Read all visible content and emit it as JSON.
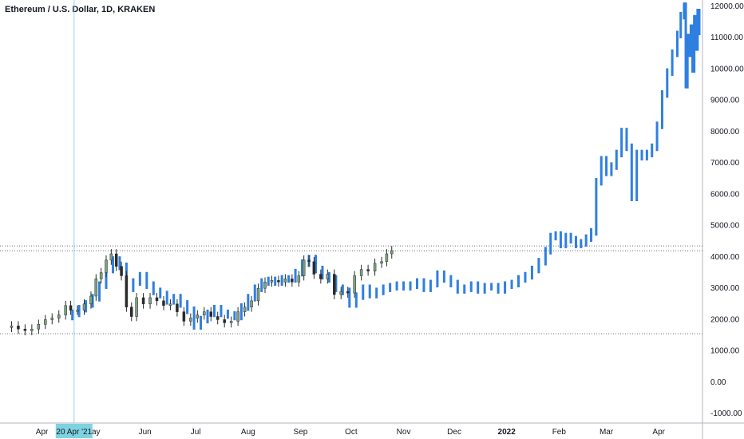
{
  "chart_data": {
    "type": "candlestick_with_projection",
    "title": "Ethereum / U.S. Dollar, 1D, KRAKEN",
    "y_ticks": [
      -1000,
      0,
      1000,
      2000,
      3000,
      4000,
      5000,
      6000,
      7000,
      8000,
      9000,
      10000,
      11000,
      12000
    ],
    "y_tick_labels": [
      "-1000.00",
      "0.00",
      "1000.00",
      "2000.00",
      "3000.00",
      "4000.00",
      "5000.00",
      "6000.00",
      "7000.00",
      "8000.00",
      "9000.00",
      "10000.00",
      "11000.00",
      "12000.00"
    ],
    "ylim": [
      -1300,
      12200
    ],
    "x_ticks": [
      {
        "label": "Apr",
        "date": "2021-04-01",
        "bold": false
      },
      {
        "label": "May",
        "date": "2021-05-01",
        "bold": false
      },
      {
        "label": "Jun",
        "date": "2021-06-01",
        "bold": false
      },
      {
        "label": "Jul",
        "date": "2021-07-01",
        "bold": false
      },
      {
        "label": "Aug",
        "date": "2021-08-01",
        "bold": false
      },
      {
        "label": "Sep",
        "date": "2021-09-01",
        "bold": false
      },
      {
        "label": "Oct",
        "date": "2021-10-01",
        "bold": false
      },
      {
        "label": "Nov",
        "date": "2021-11-01",
        "bold": false
      },
      {
        "label": "Dec",
        "date": "2021-12-01",
        "bold": false
      },
      {
        "label": "2022",
        "date": "2022-01-01",
        "bold": true
      },
      {
        "label": "Feb",
        "date": "2022-02-01",
        "bold": false
      },
      {
        "label": "Mar",
        "date": "2022-03-01",
        "bold": false
      },
      {
        "label": "Apr",
        "date": "2022-04-01",
        "bold": false
      }
    ],
    "xlim": [
      "2021-03-10",
      "2022-04-25"
    ],
    "crosshair": {
      "date": "2021-04-20",
      "label": "20 Apr '21"
    },
    "horizontal_lines": [
      {
        "value": 4350,
        "style": "dotted"
      },
      {
        "value": 4200,
        "style": "dotted"
      },
      {
        "value": 1550,
        "style": "dotted"
      }
    ],
    "price_series": {
      "name": "",
      "color_up": "#7aa581",
      "color_down": "#2a2a2a",
      "points": [
        [
          "2021-03-10",
          1750
        ],
        [
          "2021-03-14",
          1800
        ],
        [
          "2021-03-18",
          1700
        ],
        [
          "2021-03-22",
          1650
        ],
        [
          "2021-03-26",
          1700
        ],
        [
          "2021-03-30",
          1850
        ],
        [
          "2021-04-03",
          2000
        ],
        [
          "2021-04-07",
          2050
        ],
        [
          "2021-04-11",
          2150
        ],
        [
          "2021-04-15",
          2450
        ],
        [
          "2021-04-18",
          2300
        ],
        [
          "2021-04-22",
          2300
        ],
        [
          "2021-04-26",
          2500
        ],
        [
          "2021-04-30",
          2750
        ],
        [
          "2021-05-03",
          3300
        ],
        [
          "2021-05-06",
          3500
        ],
        [
          "2021-05-09",
          3900
        ],
        [
          "2021-05-12",
          4100
        ],
        [
          "2021-05-15",
          3700
        ],
        [
          "2021-05-18",
          3400
        ],
        [
          "2021-05-21",
          2400
        ],
        [
          "2021-05-24",
          2100
        ],
        [
          "2021-05-27",
          2700
        ],
        [
          "2021-05-31",
          2500
        ],
        [
          "2021-06-04",
          2700
        ],
        [
          "2021-06-08",
          2600
        ],
        [
          "2021-06-12",
          2450
        ],
        [
          "2021-06-16",
          2500
        ],
        [
          "2021-06-20",
          2250
        ],
        [
          "2021-06-24",
          1950
        ],
        [
          "2021-06-28",
          2050
        ],
        [
          "2021-07-02",
          2150
        ],
        [
          "2021-07-06",
          2250
        ],
        [
          "2021-07-10",
          2100
        ],
        [
          "2021-07-14",
          2000
        ],
        [
          "2021-07-18",
          1900
        ],
        [
          "2021-07-22",
          1950
        ],
        [
          "2021-07-26",
          2250
        ],
        [
          "2021-07-30",
          2400
        ],
        [
          "2021-08-03",
          2600
        ],
        [
          "2021-08-07",
          3000
        ],
        [
          "2021-08-11",
          3200
        ],
        [
          "2021-08-15",
          3250
        ],
        [
          "2021-08-19",
          3200
        ],
        [
          "2021-08-23",
          3300
        ],
        [
          "2021-08-27",
          3200
        ],
        [
          "2021-08-31",
          3400
        ],
        [
          "2021-09-03",
          3900
        ],
        [
          "2021-09-06",
          3850
        ],
        [
          "2021-09-09",
          3450
        ],
        [
          "2021-09-13",
          3300
        ],
        [
          "2021-09-17",
          3450
        ],
        [
          "2021-09-21",
          2800
        ],
        [
          "2021-09-25",
          2900
        ],
        [
          "2021-09-29",
          2850
        ],
        [
          "2021-10-03",
          3400
        ],
        [
          "2021-10-07",
          3600
        ],
        [
          "2021-10-11",
          3550
        ],
        [
          "2021-10-15",
          3800
        ],
        [
          "2021-10-19",
          3850
        ],
        [
          "2021-10-22",
          4100
        ],
        [
          "2021-10-25",
          4200
        ]
      ]
    },
    "projection_series": {
      "name": "",
      "color": "#2f7fe0",
      "points": [
        [
          "2021-04-15",
          2100
        ],
        [
          "2021-04-19",
          2200
        ],
        [
          "2021-04-23",
          2350
        ],
        [
          "2021-04-27",
          2500
        ],
        [
          "2021-05-01",
          2700
        ],
        [
          "2021-05-05",
          3100
        ],
        [
          "2021-05-09",
          3600
        ],
        [
          "2021-05-13",
          3900
        ],
        [
          "2021-05-17",
          3700
        ],
        [
          "2021-05-21",
          3000
        ],
        [
          "2021-05-25",
          3200
        ],
        [
          "2021-05-29",
          3400
        ],
        [
          "2021-06-02",
          3100
        ],
        [
          "2021-06-06",
          2900
        ],
        [
          "2021-06-10",
          2800
        ],
        [
          "2021-06-14",
          2600
        ],
        [
          "2021-06-18",
          2700
        ],
        [
          "2021-06-22",
          2500
        ],
        [
          "2021-06-26",
          2300
        ],
        [
          "2021-06-30",
          1800
        ],
        [
          "2021-07-04",
          2000
        ],
        [
          "2021-07-08",
          2200
        ],
        [
          "2021-07-12",
          2350
        ],
        [
          "2021-07-16",
          2200
        ],
        [
          "2021-07-20",
          2150
        ],
        [
          "2021-07-24",
          2100
        ],
        [
          "2021-07-28",
          2400
        ],
        [
          "2021-08-01",
          2700
        ],
        [
          "2021-08-05",
          3000
        ],
        [
          "2021-08-09",
          3200
        ],
        [
          "2021-08-13",
          3250
        ],
        [
          "2021-08-17",
          3200
        ],
        [
          "2021-08-21",
          3300
        ],
        [
          "2021-08-25",
          3300
        ],
        [
          "2021-08-29",
          3500
        ],
        [
          "2021-09-02",
          3800
        ],
        [
          "2021-09-06",
          3950
        ],
        [
          "2021-09-10",
          3600
        ],
        [
          "2021-09-14",
          3400
        ],
        [
          "2021-09-18",
          3300
        ],
        [
          "2021-09-22",
          3000
        ],
        [
          "2021-09-26",
          2900
        ],
        [
          "2021-09-30",
          2500
        ],
        [
          "2021-10-04",
          2750
        ],
        [
          "2021-10-08",
          3000
        ],
        [
          "2021-10-12",
          2800
        ],
        [
          "2021-10-16",
          2900
        ],
        [
          "2021-10-20",
          3000
        ],
        [
          "2021-10-24",
          3050
        ],
        [
          "2021-10-28",
          3100
        ],
        [
          "2021-11-01",
          3050
        ],
        [
          "2021-11-05",
          3100
        ],
        [
          "2021-11-09",
          3200
        ],
        [
          "2021-11-13",
          3000
        ],
        [
          "2021-11-17",
          3150
        ],
        [
          "2021-11-21",
          3450
        ],
        [
          "2021-11-25",
          3300
        ],
        [
          "2021-11-29",
          3150
        ],
        [
          "2021-12-03",
          2950
        ],
        [
          "2021-12-07",
          3000
        ],
        [
          "2021-12-11",
          3100
        ],
        [
          "2021-12-15",
          2950
        ],
        [
          "2021-12-19",
          3050
        ],
        [
          "2021-12-23",
          3050
        ],
        [
          "2021-12-27",
          2950
        ],
        [
          "2021-12-31",
          3100
        ],
        [
          "2022-01-04",
          3150
        ],
        [
          "2022-01-08",
          3300
        ],
        [
          "2022-01-12",
          3400
        ],
        [
          "2022-01-16",
          3600
        ],
        [
          "2022-01-20",
          3850
        ],
        [
          "2022-01-24",
          4200
        ],
        [
          "2022-01-27",
          4650
        ],
        [
          "2022-01-30",
          4700
        ],
        [
          "2022-02-02",
          4400
        ],
        [
          "2022-02-05",
          4650
        ],
        [
          "2022-02-08",
          4550
        ],
        [
          "2022-02-11",
          4400
        ],
        [
          "2022-02-14",
          4450
        ],
        [
          "2022-02-17",
          4600
        ],
        [
          "2022-02-20",
          4800
        ],
        [
          "2022-02-23",
          6400
        ],
        [
          "2022-02-26",
          7100
        ],
        [
          "2022-03-01",
          6700
        ],
        [
          "2022-03-04",
          6900
        ],
        [
          "2022-03-07",
          7300
        ],
        [
          "2022-03-10",
          8000
        ],
        [
          "2022-03-13",
          7500
        ],
        [
          "2022-03-16",
          5900
        ],
        [
          "2022-03-19",
          7300
        ],
        [
          "2022-03-22",
          7200
        ],
        [
          "2022-03-25",
          7300
        ],
        [
          "2022-03-28",
          7500
        ],
        [
          "2022-03-31",
          8200
        ],
        [
          "2022-04-03",
          9200
        ],
        [
          "2022-04-06",
          9900
        ],
        [
          "2022-04-09",
          10500
        ],
        [
          "2022-04-12",
          11100
        ],
        [
          "2022-04-14",
          11700
        ],
        [
          "2022-04-16",
          12000
        ],
        [
          "2022-04-17",
          9500
        ],
        [
          "2022-04-18",
          11000
        ],
        [
          "2022-04-19",
          10500
        ],
        [
          "2022-04-20",
          11300
        ],
        [
          "2022-04-21",
          10000
        ],
        [
          "2022-04-22",
          11600
        ],
        [
          "2022-04-23",
          10700
        ],
        [
          "2022-04-24",
          11800
        ],
        [
          "2022-04-25",
          11200
        ]
      ]
    }
  }
}
